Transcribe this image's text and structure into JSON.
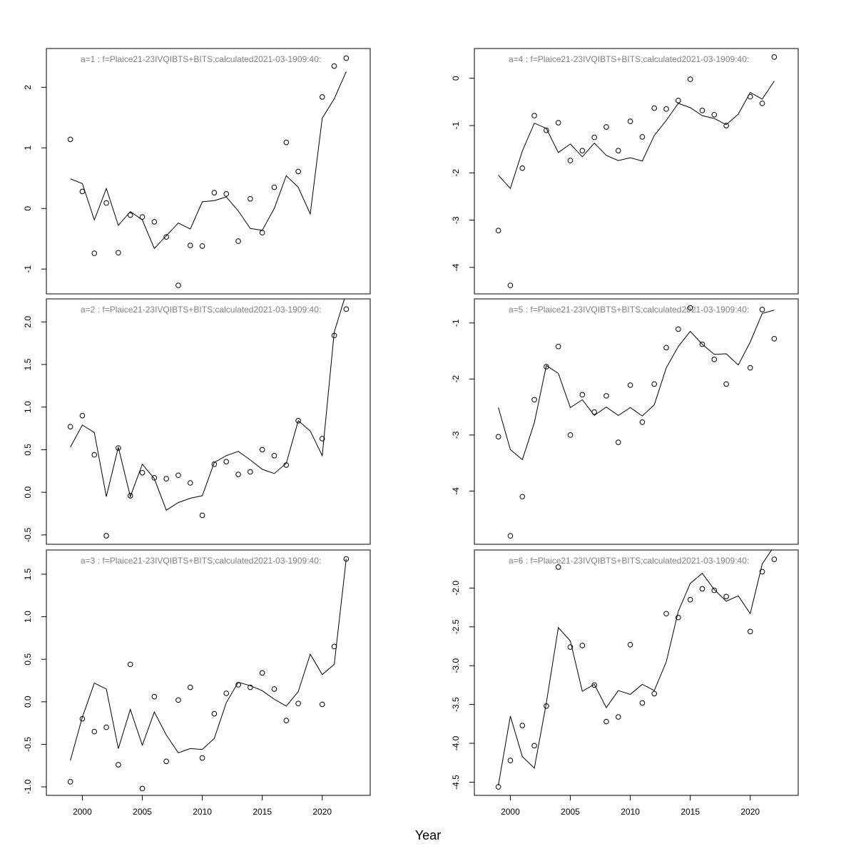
{
  "xlabel": "Year",
  "chart_data": [
    {
      "type": "line",
      "title": "a=1  :  f=Plaice21-23IVQIBTS+BITS;calculated2021-03-1909:40:",
      "x": [
        1999,
        2000,
        2001,
        2002,
        2003,
        2004,
        2005,
        2006,
        2007,
        2008,
        2009,
        2010,
        2011,
        2012,
        2013,
        2014,
        2015,
        2016,
        2017,
        2018,
        2019,
        2020,
        2021,
        2022
      ],
      "xlim": [
        1997,
        2024
      ],
      "ylim": [
        -1.41,
        2.64
      ],
      "yticks": [
        -1,
        0,
        1,
        2
      ],
      "series": [
        {
          "style": "points",
          "color": "#000000",
          "values": [
            1.14,
            0.28,
            -0.74,
            0.09,
            -0.73,
            -0.11,
            -0.14,
            -0.22,
            -0.47,
            -1.27,
            -0.61,
            -0.62,
            0.26,
            0.24,
            -0.54,
            0.16,
            -0.4,
            0.35,
            1.09,
            0.61,
            null,
            1.84,
            2.35,
            2.48
          ]
        },
        {
          "style": "line",
          "color": "#000000",
          "values": [
            0.49,
            0.41,
            -0.19,
            0.33,
            -0.28,
            -0.05,
            -0.19,
            -0.66,
            -0.45,
            -0.24,
            -0.34,
            0.11,
            0.13,
            0.19,
            -0.04,
            -0.33,
            -0.36,
            0.0,
            0.54,
            0.35,
            -0.09,
            1.49,
            1.81,
            2.26
          ]
        }
      ]
    },
    {
      "type": "line",
      "title": "a=2  :  f=Plaice21-23IVQIBTS+BITS;calculated2021-03-1909:40:",
      "x": [
        1999,
        2000,
        2001,
        2002,
        2003,
        2004,
        2005,
        2006,
        2007,
        2008,
        2009,
        2010,
        2011,
        2012,
        2013,
        2014,
        2015,
        2016,
        2017,
        2018,
        2019,
        2020,
        2021,
        2022
      ],
      "xlim": [
        1997,
        2024
      ],
      "ylim": [
        -0.61,
        2.27
      ],
      "yticks": [
        -0.5,
        {
          "value": 0,
          "label": "0.0"
        },
        0.5,
        {
          "value": 1,
          "label": "1.0"
        },
        1.5,
        {
          "value": 2,
          "label": "2.0"
        }
      ],
      "series": [
        {
          "style": "points",
          "color": "#000000",
          "values": [
            0.77,
            0.9,
            0.44,
            -0.51,
            0.52,
            -0.04,
            0.23,
            0.17,
            0.16,
            0.2,
            0.11,
            -0.27,
            0.33,
            0.36,
            0.21,
            0.24,
            0.5,
            0.43,
            0.32,
            0.84,
            null,
            0.63,
            1.84,
            2.15
          ]
        },
        {
          "style": "line",
          "color": "#000000",
          "values": [
            0.53,
            0.79,
            0.7,
            -0.05,
            0.53,
            -0.05,
            0.33,
            0.16,
            -0.21,
            -0.12,
            -0.07,
            -0.04,
            0.35,
            0.43,
            0.48,
            0.38,
            0.27,
            0.22,
            0.34,
            0.84,
            0.72,
            0.43,
            1.88,
            2.34
          ]
        }
      ]
    },
    {
      "type": "line",
      "title": "a=3  :  f=Plaice21-23IVQIBTS+BITS;calculated2021-03-1909:40:",
      "x": [
        1999,
        2000,
        2001,
        2002,
        2003,
        2004,
        2005,
        2006,
        2007,
        2008,
        2009,
        2010,
        2011,
        2012,
        2013,
        2014,
        2015,
        2016,
        2017,
        2018,
        2019,
        2020,
        2021,
        2022
      ],
      "xlim": [
        1997,
        2024
      ],
      "xticks": [
        2000,
        2005,
        2010,
        2015,
        2020
      ],
      "ylim": [
        -1.1,
        1.785
      ],
      "yticks": [
        {
          "value": -1,
          "label": "-1.0"
        },
        -0.5,
        {
          "value": 0,
          "label": "0.0"
        },
        0.5,
        {
          "value": 1,
          "label": "1.0"
        },
        1.5
      ],
      "series": [
        {
          "style": "points",
          "color": "#000000",
          "values": [
            -0.94,
            -0.2,
            -0.35,
            -0.3,
            -0.74,
            0.44,
            -1.02,
            0.06,
            -0.7,
            0.02,
            0.17,
            -0.66,
            -0.14,
            0.1,
            0.2,
            0.17,
            0.34,
            0.15,
            -0.22,
            -0.02,
            null,
            -0.03,
            0.65,
            1.68
          ]
        },
        {
          "style": "line",
          "color": "#000000",
          "values": [
            -0.69,
            -0.18,
            0.22,
            0.15,
            -0.55,
            -0.09,
            -0.51,
            -0.12,
            -0.39,
            -0.6,
            -0.55,
            -0.56,
            -0.43,
            -0.01,
            0.23,
            0.19,
            0.13,
            0.03,
            -0.05,
            0.12,
            0.56,
            0.32,
            0.44,
            1.68
          ]
        }
      ]
    },
    {
      "type": "line",
      "title": "a=4  :  f=Plaice21-23IVQIBTS+BITS;calculated2021-03-1909:40:",
      "x": [
        1999,
        2000,
        2001,
        2002,
        2003,
        2004,
        2005,
        2006,
        2007,
        2008,
        2009,
        2010,
        2011,
        2012,
        2013,
        2014,
        2015,
        2016,
        2017,
        2018,
        2019,
        2020,
        2021,
        2022
      ],
      "xlim": [
        1997,
        2024
      ],
      "ylim": [
        -4.56,
        0.63
      ],
      "yticks": [
        -4,
        -3,
        -2,
        -1,
        0
      ],
      "series": [
        {
          "style": "points",
          "color": "#000000",
          "values": [
            -3.22,
            -4.38,
            -1.9,
            -0.79,
            -1.1,
            -0.94,
            -1.74,
            -1.53,
            -1.25,
            -1.03,
            -1.53,
            -0.91,
            -1.24,
            -0.63,
            -0.65,
            -0.47,
            -0.02,
            -0.68,
            -0.77,
            -1.0,
            null,
            -0.39,
            -0.53,
            0.45
          ]
        },
        {
          "style": "line",
          "color": "#000000",
          "values": [
            -2.05,
            -2.33,
            -1.54,
            -0.95,
            -1.06,
            -1.57,
            -1.39,
            -1.66,
            -1.37,
            -1.63,
            -1.74,
            -1.68,
            -1.75,
            -1.21,
            -0.89,
            -0.53,
            -0.62,
            -0.79,
            -0.85,
            -0.98,
            -0.76,
            -0.3,
            -0.44,
            -0.06
          ]
        }
      ]
    },
    {
      "type": "line",
      "title": "a=5  :  f=Plaice21-23IVQIBTS+BITS;calculated2021-03-1909:40:",
      "x": [
        1999,
        2000,
        2001,
        2002,
        2003,
        2004,
        2005,
        2006,
        2007,
        2008,
        2009,
        2010,
        2011,
        2012,
        2013,
        2014,
        2015,
        2016,
        2017,
        2018,
        2019,
        2020,
        2021,
        2022
      ],
      "xlim": [
        1997,
        2024
      ],
      "ylim": [
        -4.95,
        -0.57
      ],
      "yticks": [
        -4,
        -3,
        -2,
        -1
      ],
      "series": [
        {
          "style": "points",
          "color": "#000000",
          "values": [
            -3.03,
            -4.8,
            -4.1,
            -2.37,
            -1.78,
            -1.42,
            -3.0,
            -2.28,
            -2.59,
            -2.3,
            -3.13,
            -2.11,
            -2.77,
            -2.09,
            -1.44,
            -1.11,
            -0.73,
            -1.38,
            -1.65,
            -2.09,
            null,
            -1.8,
            -0.76,
            -1.28
          ]
        },
        {
          "style": "line",
          "color": "#000000",
          "values": [
            -2.51,
            -3.26,
            -3.44,
            -2.78,
            -1.76,
            -1.9,
            -2.51,
            -2.37,
            -2.65,
            -2.5,
            -2.65,
            -2.51,
            -2.66,
            -2.46,
            -1.8,
            -1.42,
            -1.15,
            -1.38,
            -1.56,
            -1.55,
            -1.75,
            -1.34,
            -0.83,
            -0.77
          ]
        }
      ]
    },
    {
      "type": "line",
      "title": "a=6  :  f=Plaice21-23IVQIBTS+BITS;calculated2021-03-1909:40:",
      "x": [
        1999,
        2000,
        2001,
        2002,
        2003,
        2004,
        2005,
        2006,
        2007,
        2008,
        2009,
        2010,
        2011,
        2012,
        2013,
        2014,
        2015,
        2016,
        2017,
        2018,
        2019,
        2020,
        2021,
        2022
      ],
      "xlim": [
        1997,
        2024
      ],
      "xticks": [
        2000,
        2005,
        2010,
        2015,
        2020
      ],
      "ylim": [
        -4.67,
        -1.51
      ],
      "yticks": [
        -4.5,
        {
          "value": -4,
          "label": "-4.0"
        },
        -3.5,
        {
          "value": -3,
          "label": "-3.0"
        },
        -2.5,
        {
          "value": -2,
          "label": "-2.0"
        }
      ],
      "series": [
        {
          "style": "points",
          "color": "#000000",
          "values": [
            -4.56,
            -4.22,
            -3.77,
            -4.03,
            -3.52,
            -1.73,
            -2.76,
            -2.74,
            -3.25,
            -3.72,
            -3.66,
            -2.73,
            -3.48,
            -3.36,
            -2.33,
            -2.38,
            -2.15,
            -2.01,
            -2.03,
            -2.11,
            null,
            -2.56,
            -1.79,
            -1.63
          ]
        },
        {
          "style": "line",
          "color": "#000000",
          "values": [
            -4.54,
            -3.65,
            -4.17,
            -4.32,
            -3.48,
            -2.51,
            -2.68,
            -3.33,
            -3.24,
            -3.54,
            -3.32,
            -3.37,
            -3.24,
            -3.32,
            -2.95,
            -2.3,
            -1.94,
            -1.81,
            -2.02,
            -2.17,
            -2.1,
            -2.33,
            -1.69,
            -1.46
          ]
        }
      ]
    }
  ]
}
